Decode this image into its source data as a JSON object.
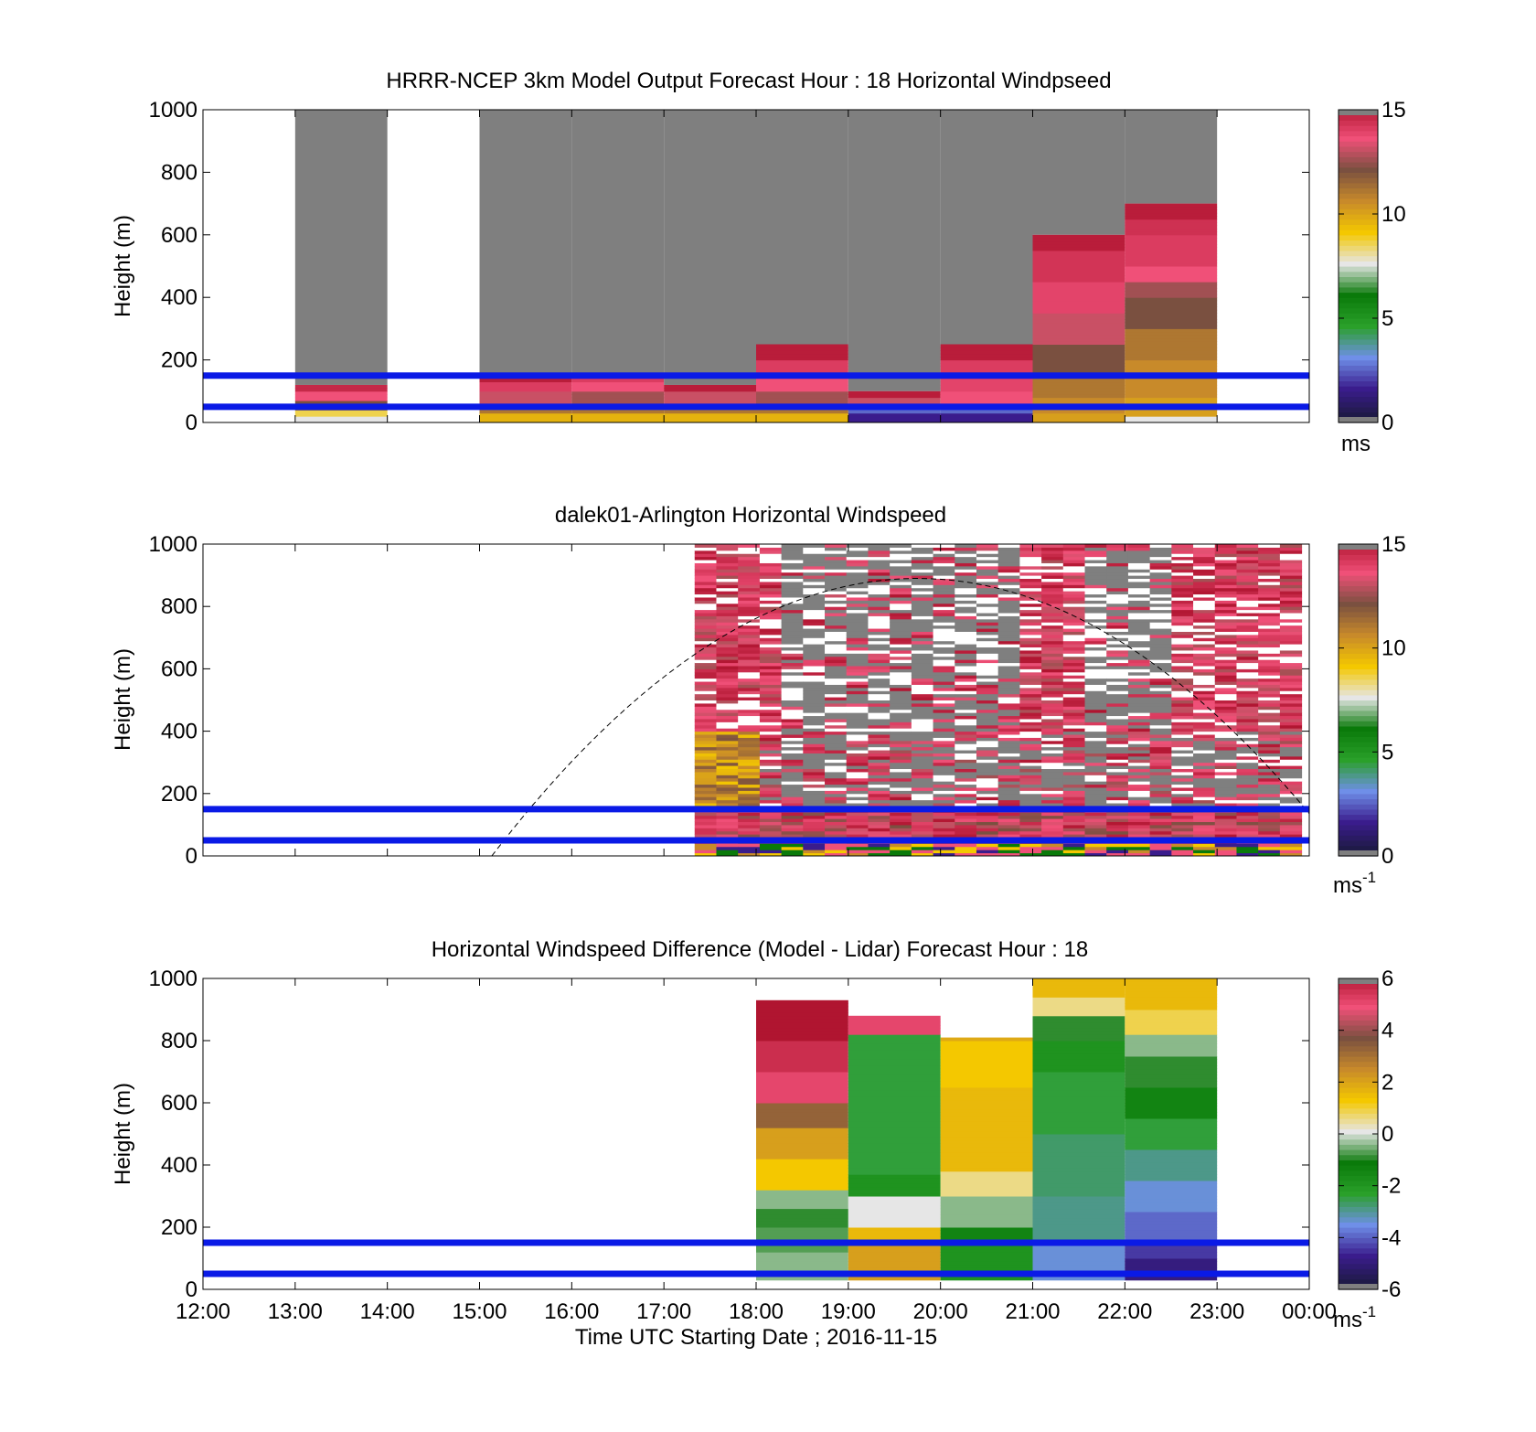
{
  "chart_data": [
    {
      "type": "heatmap",
      "title": "HRRR-NCEP 3km Model Output   Forecast Hour : 18 Horizontal Windpseed",
      "ylabel": "Height (m)",
      "ylim": [
        0,
        1000
      ],
      "yticks": [
        "0",
        "200",
        "400",
        "600",
        "800",
        "1000"
      ],
      "colorbar": {
        "min": 0,
        "max": 15,
        "ticks": [
          "0",
          "5",
          "10",
          "15"
        ],
        "unit": "ms",
        "stops": [
          "#1a1a3a",
          "#3a1c8c",
          "#6f8fe8",
          "#2aa02a",
          "#0a7a0a",
          "#e6e6e6",
          "#f4c800",
          "#c88a2a",
          "#7a5040",
          "#f05078",
          "#b01530"
        ]
      },
      "reference_lines_m": [
        50,
        150
      ],
      "columns": [
        {
          "hour": "13:00",
          "top": 1000,
          "data_top": 120,
          "profile": [
            [
              0,
              7.5
            ],
            [
              20,
              8.5
            ],
            [
              40,
              12
            ],
            [
              70,
              13.5
            ],
            [
              100,
              14.5
            ]
          ]
        },
        {
          "hour": "15:00",
          "top": 1000,
          "data_top": 150,
          "profile": [
            [
              0,
              9.5
            ],
            [
              30,
              11
            ],
            [
              60,
              13
            ],
            [
              100,
              14
            ],
            [
              130,
              14.8
            ]
          ]
        },
        {
          "hour": "16:00",
          "top": 1000,
          "data_top": 150,
          "profile": [
            [
              0,
              9.5
            ],
            [
              30,
              11
            ],
            [
              60,
              12.5
            ],
            [
              100,
              13.5
            ],
            [
              130,
              14
            ]
          ]
        },
        {
          "hour": "17:00",
          "top": 1000,
          "data_top": 120,
          "profile": [
            [
              0,
              9.5
            ],
            [
              30,
              11
            ],
            [
              60,
              13
            ],
            [
              100,
              14.8
            ]
          ]
        },
        {
          "hour": "18:00",
          "top": 1000,
          "data_top": 250,
          "profile": [
            [
              0,
              9.5
            ],
            [
              30,
              11
            ],
            [
              60,
              12.5
            ],
            [
              100,
              13.5
            ],
            [
              150,
              14
            ],
            [
              200,
              14.8
            ]
          ]
        },
        {
          "hour": "19:00",
          "top": 1000,
          "data_top": 100,
          "profile": [
            [
              0,
              1.5
            ],
            [
              30,
              2.5
            ],
            [
              60,
              13
            ],
            [
              80,
              14.8
            ]
          ]
        },
        {
          "hour": "20:00",
          "top": 1000,
          "data_top": 250,
          "profile": [
            [
              0,
              1.5
            ],
            [
              30,
              2.5
            ],
            [
              60,
              13.5
            ],
            [
              100,
              13.8
            ],
            [
              150,
              14
            ],
            [
              200,
              14.8
            ]
          ]
        },
        {
          "hour": "21:00",
          "top": 1000,
          "data_top": 600,
          "profile": [
            [
              0,
              10
            ],
            [
              30,
              10.5
            ],
            [
              80,
              11
            ],
            [
              150,
              12
            ],
            [
              250,
              13
            ],
            [
              350,
              13.8
            ],
            [
              450,
              14.2
            ],
            [
              550,
              14.8
            ]
          ]
        },
        {
          "hour": "22:00",
          "top": 1000,
          "data_top": 700,
          "profile": [
            [
              0,
              7.5
            ],
            [
              20,
              10
            ],
            [
              80,
              10.5
            ],
            [
              200,
              11
            ],
            [
              300,
              12
            ],
            [
              400,
              12.5
            ],
            [
              450,
              13.5
            ],
            [
              500,
              14
            ],
            [
              600,
              14.3
            ],
            [
              650,
              14.8
            ]
          ]
        }
      ]
    },
    {
      "type": "heatmap",
      "title": "dalek01-Arlington  Horizontal Windspeed",
      "ylabel": "Height (m)",
      "ylim": [
        0,
        1000
      ],
      "yticks": [
        "0",
        "200",
        "400",
        "600",
        "800",
        "1000"
      ],
      "colorbar": {
        "min": 0,
        "max": 15,
        "ticks": [
          "0",
          "5",
          "10",
          "15"
        ],
        "unit": "ms",
        "unit_exp": "-1"
      },
      "reference_lines_m": [
        50,
        150
      ],
      "data_start": "17:20",
      "data_end": "23:55",
      "range_curve_start": "15:08"
    },
    {
      "type": "heatmap",
      "title": "Horizontal Windspeed Difference (Model - Lidar) Forecast Hour : 18",
      "ylabel": "Height (m)",
      "xlabel": "Time UTC  Starting Date ; 2016-11-15",
      "ylim": [
        0,
        1000
      ],
      "yticks": [
        "0",
        "200",
        "400",
        "600",
        "800",
        "1000"
      ],
      "xticks": [
        "12:00",
        "13:00",
        "14:00",
        "15:00",
        "16:00",
        "17:00",
        "18:00",
        "19:00",
        "20:00",
        "21:00",
        "22:00",
        "23:00",
        "00:00"
      ],
      "colorbar": {
        "min": -6,
        "max": 6,
        "ticks": [
          "-6",
          "-4",
          "-2",
          "0",
          "2",
          "4",
          "6"
        ],
        "unit": "ms",
        "unit_exp": "-1"
      },
      "reference_lines_m": [
        50,
        150
      ],
      "columns": [
        {
          "hour": "18:00",
          "top": 930,
          "profile": [
            [
              30,
              -0.5
            ],
            [
              120,
              -0.8
            ],
            [
              200,
              -1
            ],
            [
              260,
              -0.5
            ],
            [
              320,
              1.2
            ],
            [
              420,
              2
            ],
            [
              520,
              3.2
            ],
            [
              600,
              5
            ],
            [
              700,
              5.5
            ],
            [
              800,
              6
            ]
          ]
        },
        {
          "hour": "19:00",
          "top": 880,
          "profile": [
            [
              30,
              2
            ],
            [
              150,
              1.5
            ],
            [
              200,
              0
            ],
            [
              300,
              -2
            ],
            [
              370,
              -2.5
            ],
            [
              820,
              5
            ],
            [
              880,
              5.5
            ]
          ]
        },
        {
          "hour": "20:00",
          "top": 810,
          "profile": [
            [
              30,
              -2
            ],
            [
              150,
              -1.5
            ],
            [
              200,
              -0.5
            ],
            [
              300,
              0.5
            ],
            [
              380,
              1.5
            ],
            [
              450,
              1.5
            ],
            [
              550,
              1.5
            ],
            [
              650,
              1.2
            ],
            [
              800,
              1.8
            ]
          ]
        },
        {
          "hour": "21:00",
          "top": 1000,
          "profile": [
            [
              30,
              -3.5
            ],
            [
              150,
              -3
            ],
            [
              300,
              -2.8
            ],
            [
              500,
              -2.5
            ],
            [
              700,
              -2
            ],
            [
              800,
              -1
            ],
            [
              880,
              0.5
            ],
            [
              940,
              1.5
            ],
            [
              1000,
              1.8
            ]
          ]
        },
        {
          "hour": "22:00",
          "top": 1000,
          "profile": [
            [
              30,
              -5
            ],
            [
              100,
              -4.5
            ],
            [
              150,
              -4
            ],
            [
              250,
              -3.5
            ],
            [
              350,
              -3
            ],
            [
              450,
              -2.5
            ],
            [
              550,
              -1.5
            ],
            [
              650,
              -1
            ],
            [
              750,
              -0.5
            ],
            [
              820,
              0.8
            ],
            [
              900,
              1.5
            ],
            [
              1000,
              1.8
            ]
          ]
        }
      ]
    }
  ]
}
